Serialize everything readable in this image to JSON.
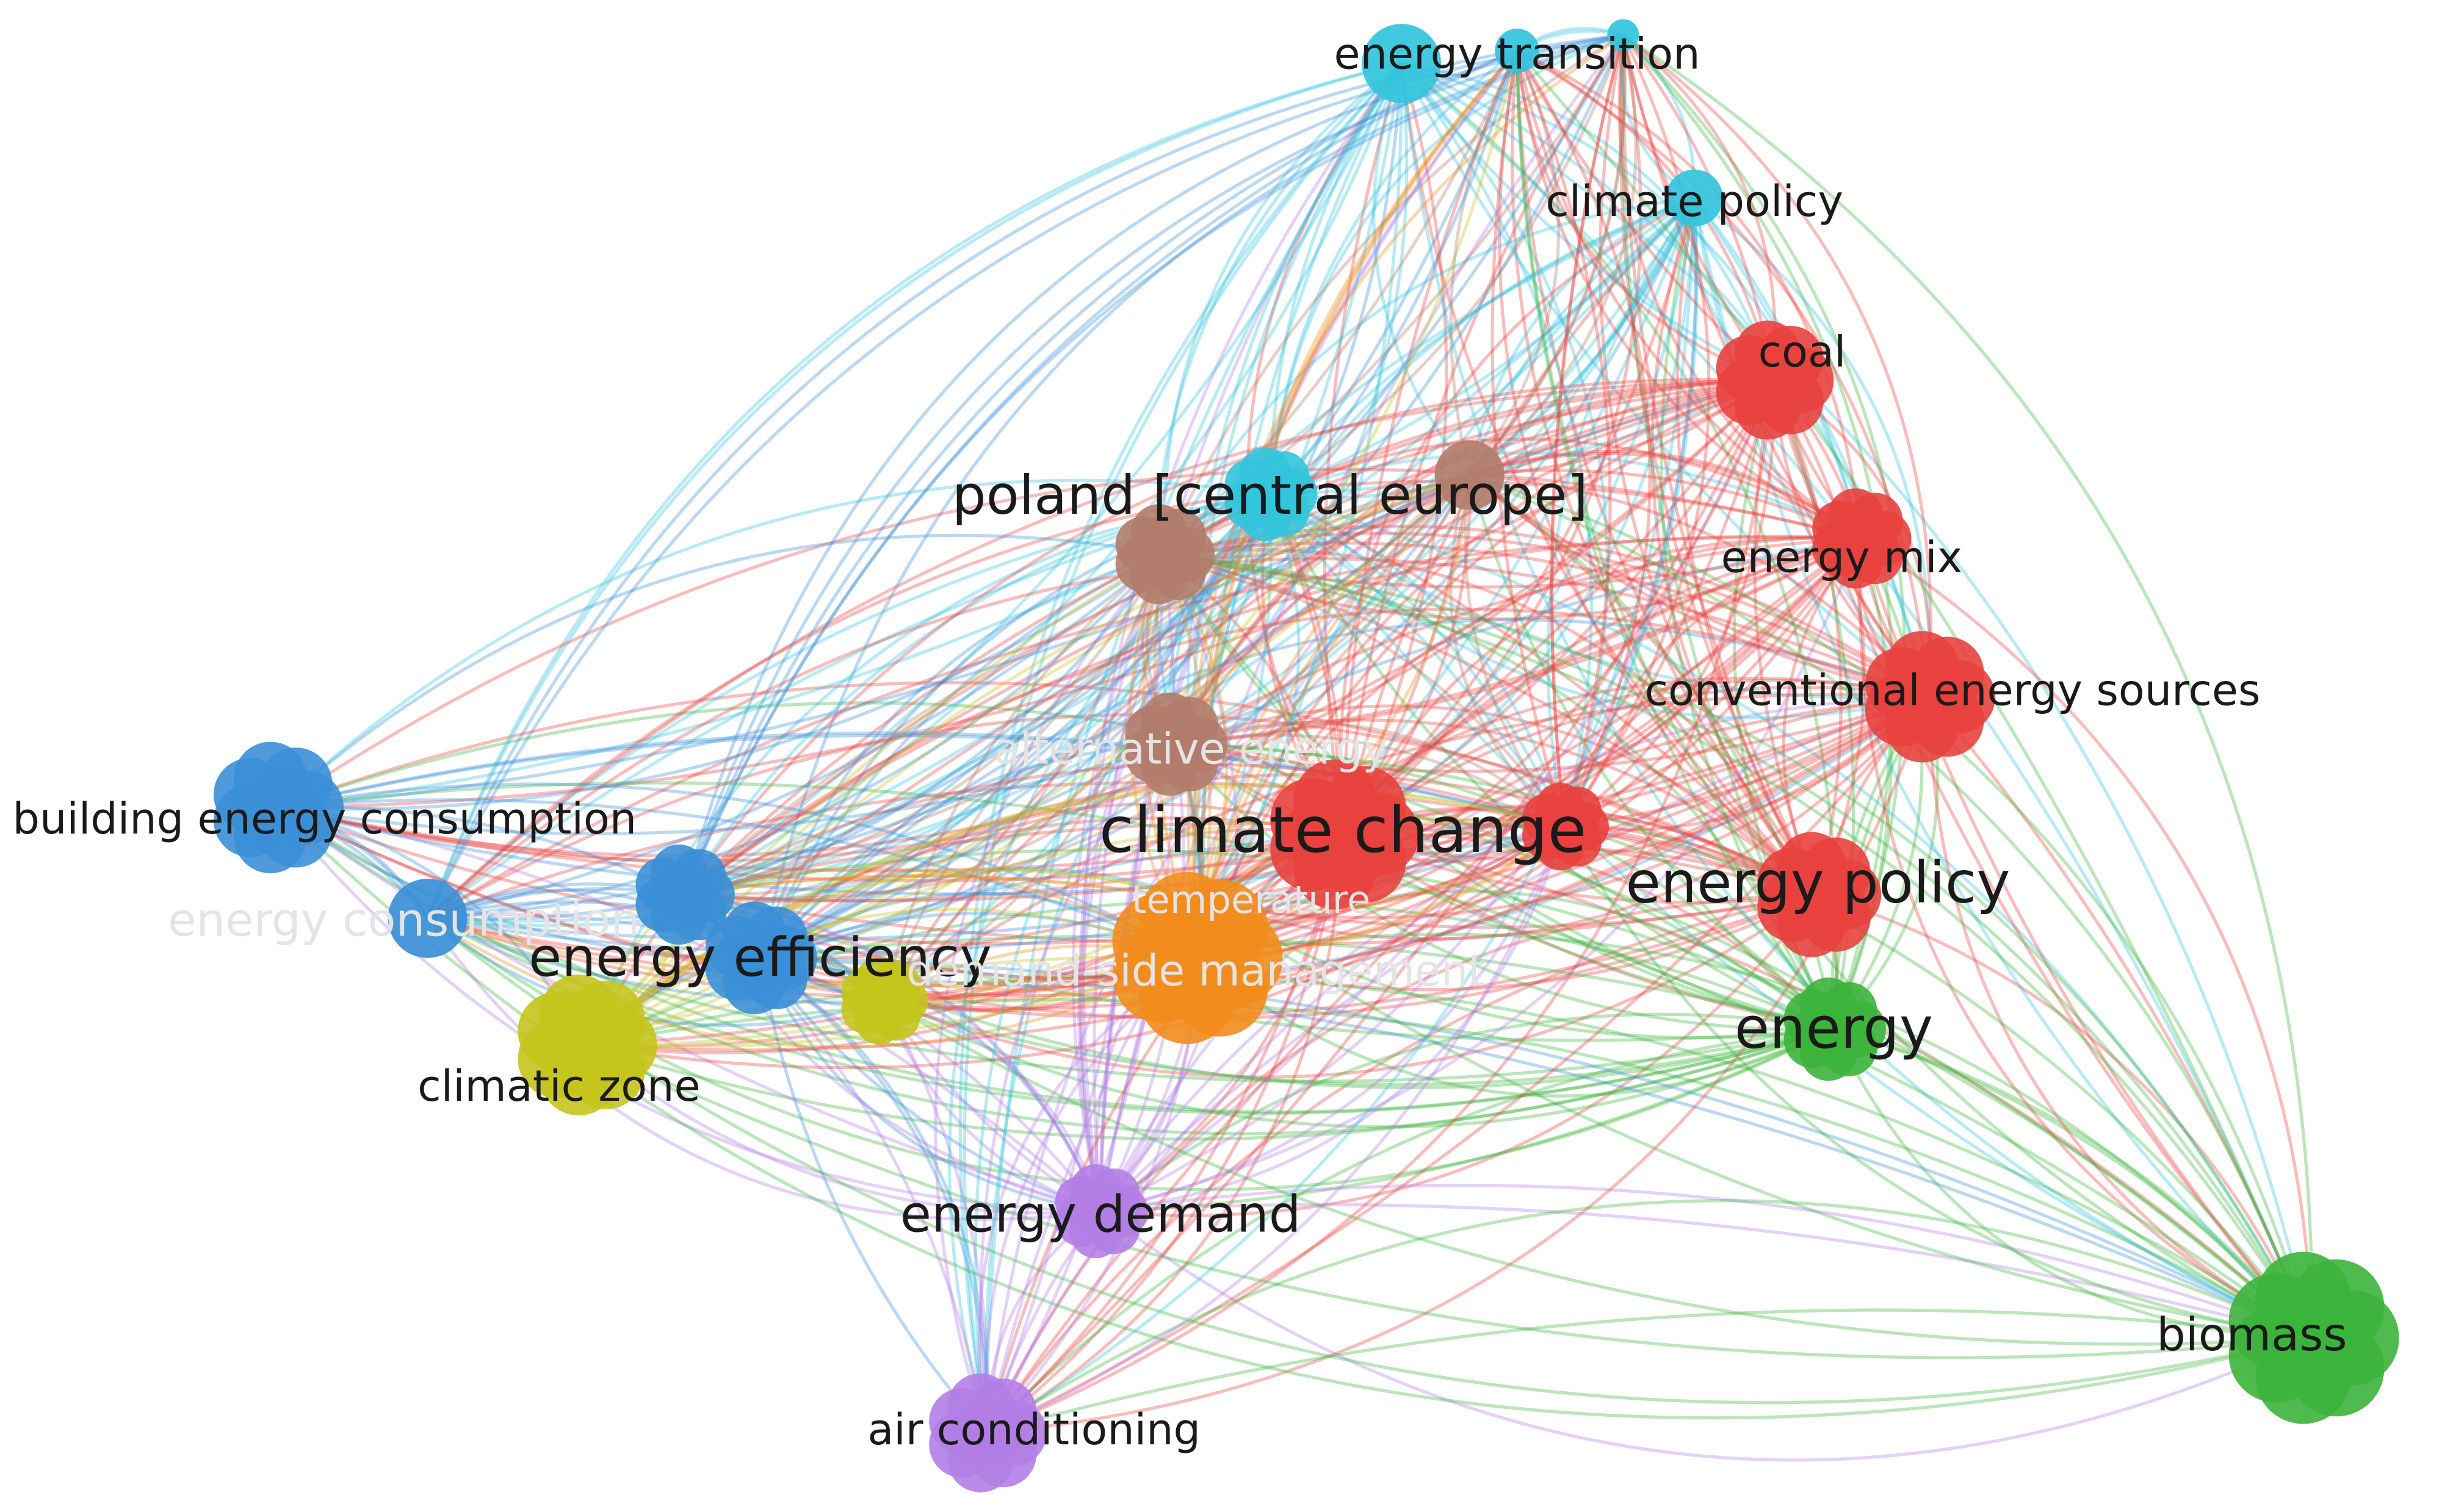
{
  "nodes": [
    {
      "label": "climate change"
    },
    {
      "label": "energy policy"
    },
    {
      "label": "energy"
    },
    {
      "label": "energy efficiency"
    },
    {
      "label": "energy demand"
    },
    {
      "label": "poland [central europe]"
    },
    {
      "label": "energy transition"
    },
    {
      "label": "climate policy"
    },
    {
      "label": "coal"
    },
    {
      "label": "energy mix"
    },
    {
      "label": "conventional energy sources"
    },
    {
      "label": "biomass"
    },
    {
      "label": "building energy consumption"
    },
    {
      "label": "climatic zone"
    },
    {
      "label": "air conditioning"
    },
    {
      "label": "alternative energy"
    },
    {
      "label": "demand-side management"
    },
    {
      "label": "energy consumption"
    },
    {
      "label": "temperature"
    }
  ]
}
